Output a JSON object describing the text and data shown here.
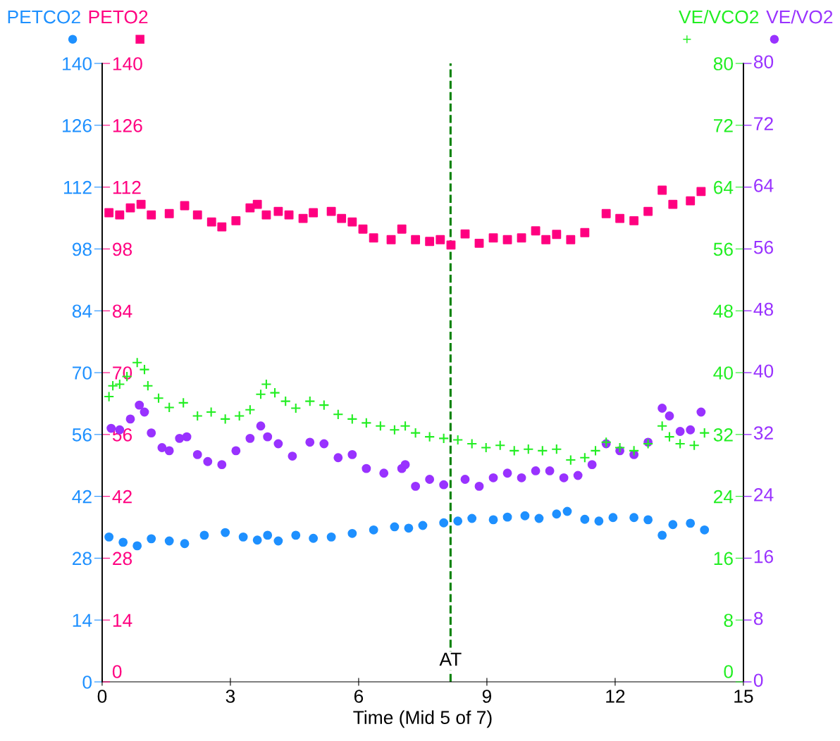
{
  "chart_data": {
    "type": "scatter",
    "xlabel": "Time (Mid 5 of 7)",
    "xlim": [
      0,
      15
    ],
    "xticks": [
      0,
      3,
      6,
      9,
      12,
      15
    ],
    "ylim": [
      0,
      140
    ],
    "yticks": [
      0,
      14,
      28,
      42,
      56,
      70,
      84,
      98,
      112,
      126,
      140
    ],
    "y2lim": [
      0,
      140
    ],
    "y2ticks": [
      0,
      14,
      28,
      42,
      56,
      70,
      84,
      98,
      112,
      126,
      140
    ],
    "y3lim": [
      0,
      80
    ],
    "y3ticks": [
      0,
      8,
      16,
      24,
      32,
      40,
      48,
      56,
      64,
      72,
      80
    ],
    "annotations": [
      "0",
      "8",
      "16",
      "24",
      "32",
      "40",
      "48",
      "56",
      "64",
      "72",
      "80"
    ],
    "grid": false,
    "legend": "top",
    "ref_lines": [
      {
        "axis": "x",
        "value": 8.15,
        "label": "AT",
        "color": "#008000",
        "line_style": "dashed"
      }
    ],
    "series": [
      {
        "name": "PETCO2",
        "color": "#1e90ff",
        "axis": "y",
        "marker": "circle",
        "x": [
          0.16,
          0.49,
          0.82,
          1.15,
          1.57,
          1.93,
          2.39,
          2.88,
          3.3,
          3.63,
          3.87,
          4.12,
          4.53,
          4.94,
          5.36,
          5.85,
          6.35,
          6.84,
          7.17,
          7.5,
          7.99,
          8.32,
          8.65,
          9.15,
          9.48,
          9.89,
          10.22,
          10.63,
          10.88,
          11.29,
          11.62,
          11.95,
          12.44,
          12.77,
          13.1,
          13.35,
          13.76,
          14.09
        ],
        "values": [
          32.8,
          31.6,
          30.8,
          32.4,
          31.9,
          31.3,
          33.2,
          33.8,
          32.8,
          32.1,
          33.2,
          31.9,
          33.2,
          32.5,
          32.8,
          33.6,
          34.4,
          35.1,
          34.8,
          35.4,
          36.0,
          36.4,
          37.0,
          36.7,
          37.3,
          37.6,
          37.0,
          38.0,
          38.6,
          36.8,
          36.4,
          37.2,
          37.2,
          36.7,
          33.2,
          35.6,
          35.9,
          34.4
        ]
      },
      {
        "name": "PETO2",
        "color": "#ff0080",
        "axis": "y2",
        "marker": "square",
        "x": [
          0.16,
          0.41,
          0.66,
          0.91,
          1.15,
          1.57,
          1.93,
          2.23,
          2.56,
          2.8,
          3.13,
          3.46,
          3.63,
          3.84,
          4.12,
          4.37,
          4.7,
          4.94,
          5.36,
          5.6,
          5.85,
          6.1,
          6.35,
          6.76,
          7.01,
          7.33,
          7.66,
          7.91,
          8.16,
          8.49,
          8.82,
          9.15,
          9.48,
          9.81,
          10.14,
          10.38,
          10.63,
          10.96,
          11.29,
          11.79,
          12.11,
          12.44,
          12.77,
          13.1,
          13.35,
          13.76,
          14.01
        ],
        "values": [
          106.2,
          105.7,
          107.3,
          108.1,
          105.7,
          106.0,
          107.8,
          105.7,
          104.1,
          103.0,
          104.4,
          107.3,
          108.1,
          105.7,
          106.5,
          105.7,
          104.9,
          106.2,
          106.5,
          104.9,
          104.1,
          102.5,
          100.5,
          100.1,
          102.5,
          100.1,
          99.7,
          100.1,
          98.9,
          101.4,
          99.3,
          100.5,
          100.1,
          100.5,
          102.1,
          100.1,
          101.3,
          100.1,
          101.7,
          106.0,
          104.9,
          104.4,
          106.5,
          111.3,
          108.1,
          108.9,
          111.0
        ]
      },
      {
        "name": "VE/VCO2",
        "color": "#22ee22",
        "axis": "y3",
        "marker": "cross",
        "x": [
          0.16,
          0.25,
          0.41,
          0.58,
          0.82,
          0.99,
          1.07,
          1.32,
          1.57,
          1.9,
          2.23,
          2.55,
          2.88,
          3.21,
          3.46,
          3.71,
          3.84,
          4.04,
          4.29,
          4.53,
          4.86,
          5.19,
          5.52,
          5.85,
          6.18,
          6.51,
          6.84,
          7.09,
          7.33,
          7.66,
          7.99,
          8.32,
          8.65,
          8.98,
          9.31,
          9.64,
          9.97,
          10.3,
          10.63,
          10.96,
          11.29,
          11.54,
          11.79,
          12.11,
          12.44,
          12.77,
          13.1,
          13.27,
          13.52,
          13.85,
          14.09
        ],
        "values": [
          36.9,
          38.3,
          38.5,
          39.5,
          41.3,
          40.4,
          38.3,
          36.7,
          35.5,
          36.1,
          34.4,
          34.9,
          34.0,
          34.4,
          35.2,
          37.2,
          38.5,
          37.4,
          36.3,
          35.4,
          36.3,
          35.8,
          34.6,
          34.0,
          33.5,
          33.1,
          32.6,
          33.1,
          32.2,
          31.7,
          31.5,
          31.3,
          30.8,
          30.3,
          30.6,
          29.9,
          30.1,
          29.9,
          30.1,
          28.7,
          29.0,
          29.9,
          31.0,
          30.3,
          29.9,
          30.8,
          33.1,
          31.7,
          30.8,
          30.6,
          32.2
        ]
      },
      {
        "name": "VE/VO2",
        "color": "#9932ff",
        "axis": "y3",
        "marker": "circle",
        "x": [
          0.21,
          0.41,
          0.66,
          0.87,
          0.99,
          1.15,
          1.4,
          1.57,
          1.81,
          1.98,
          2.23,
          2.47,
          2.8,
          3.13,
          3.46,
          3.71,
          3.87,
          4.12,
          4.45,
          4.86,
          5.19,
          5.52,
          5.85,
          6.18,
          6.59,
          7.01,
          7.09,
          7.33,
          7.66,
          7.99,
          8.49,
          8.82,
          9.15,
          9.48,
          9.81,
          10.14,
          10.47,
          10.8,
          11.13,
          11.46,
          11.79,
          12.11,
          12.44,
          12.77,
          13.1,
          13.27,
          13.52,
          13.76,
          14.01
        ],
        "values": [
          32.8,
          32.6,
          34.0,
          35.8,
          34.9,
          32.2,
          30.3,
          29.9,
          31.5,
          31.7,
          29.4,
          28.5,
          28.1,
          29.9,
          31.5,
          33.1,
          31.7,
          30.8,
          29.2,
          31.0,
          30.8,
          29.0,
          29.4,
          27.6,
          27.0,
          27.6,
          28.1,
          25.3,
          26.2,
          25.5,
          26.2,
          25.3,
          26.4,
          27.0,
          26.4,
          27.3,
          27.3,
          26.4,
          26.7,
          28.1,
          30.8,
          29.9,
          29.4,
          31.0,
          35.4,
          34.4,
          32.4,
          32.6,
          34.9
        ]
      }
    ]
  }
}
